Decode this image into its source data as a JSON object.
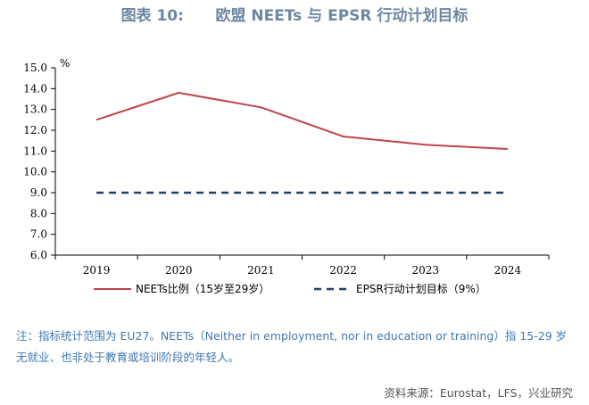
{
  "figure": {
    "title": "图表 10:      欧盟 NEETs 与 EPSR 行动计划目标",
    "note": "注：指标统计范围为 EU27。NEETs（Neither in employment, nor in education or training）指 15-29 岁无就业、也非处于教育或培训阶段的年轻人。",
    "source": "资料来源：Eurostat，LFS，兴业研究"
  },
  "chart_data": {
    "type": "line",
    "categories": [
      "2019",
      "2020",
      "2021",
      "2022",
      "2023",
      "2024"
    ],
    "ylabel": "%",
    "ylim": [
      6.0,
      15.0
    ],
    "yticks": [
      "15.0",
      "14.0",
      "13.0",
      "12.0",
      "11.0",
      "10.0",
      "9.0",
      "8.0",
      "7.0",
      "6.0"
    ],
    "grid": false,
    "legend_position": "bottom",
    "series": [
      {
        "name": "NEETs比例（15岁至29岁）",
        "values": [
          12.5,
          13.8,
          13.1,
          11.7,
          11.3,
          11.1
        ],
        "color": "#c0434e",
        "style": "solid"
      },
      {
        "name": "EPSR行动计划目标（9%）",
        "values": [
          9.0,
          9.0,
          9.0,
          9.0,
          9.0,
          9.0
        ],
        "color": "#1f3f6e",
        "style": "dashed"
      }
    ]
  }
}
